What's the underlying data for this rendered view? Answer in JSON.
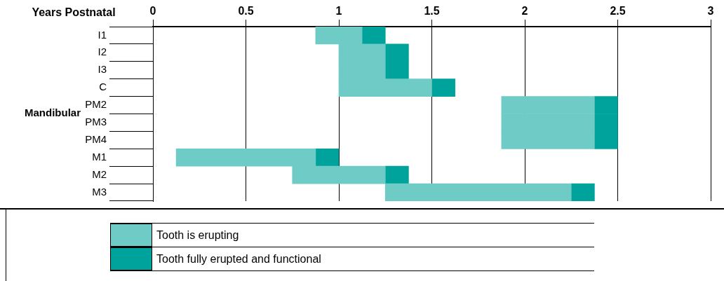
{
  "chart_data": {
    "type": "bar",
    "orientation": "horizontal",
    "stacked": true,
    "xlabel": "Years Postnatal",
    "ylabel": "Mandibular",
    "categories": [
      "I1",
      "I2",
      "I3",
      "C",
      "PM2",
      "PM3",
      "PM4",
      "M1",
      "M2",
      "M3"
    ],
    "series": [
      {
        "name": "Tooth is erupting",
        "color": "#6fcbc5",
        "base": [
          0.875,
          1.0,
          1.0,
          1.0,
          1.875,
          1.875,
          1.875,
          0.125,
          0.75,
          1.25
        ],
        "values": [
          0.25,
          0.25,
          0.25,
          0.5,
          0.5,
          0.5,
          0.5,
          0.75,
          0.5,
          1.0
        ]
      },
      {
        "name": "Tooth fully erupted and functional",
        "color": "#00a39b",
        "base": [
          1.125,
          1.25,
          1.25,
          1.5,
          2.375,
          2.375,
          2.375,
          0.875,
          1.25,
          2.25
        ],
        "values": [
          0.125,
          0.125,
          0.125,
          0.125,
          0.125,
          0.125,
          0.125,
          0.125,
          0.125,
          0.125
        ]
      }
    ],
    "xlim": [
      0,
      3
    ],
    "xticks": [
      0,
      0.5,
      1,
      1.5,
      2,
      2.5,
      3
    ],
    "grid": "x",
    "legend": "bottom"
  }
}
